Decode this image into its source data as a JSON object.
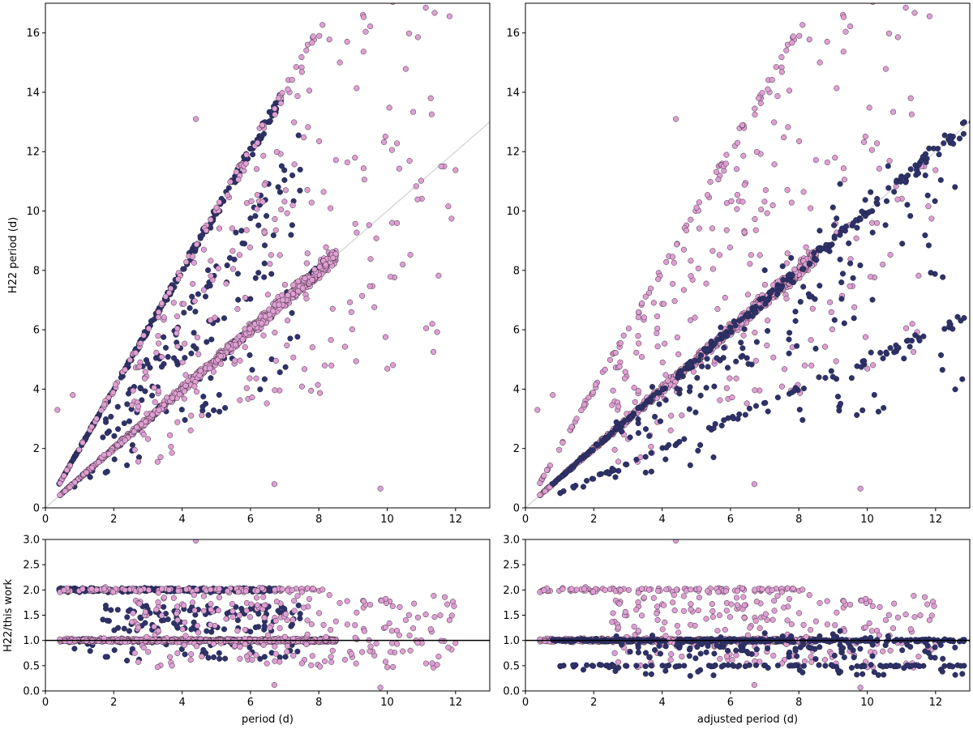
{
  "colors": {
    "dark_series": "#2e3268",
    "pink_series": "#df9fd3",
    "pink_edge": "#3b2a3a",
    "identity_line": "#d9d9d9",
    "ratio_line": "#000000"
  },
  "chart_data": [
    {
      "id": "top-left",
      "type": "scatter",
      "xlabel": "",
      "ylabel": "H22 period (d)",
      "xlim": [
        0,
        13
      ],
      "ylim": [
        0,
        17
      ],
      "xticks": [
        0,
        2,
        4,
        6,
        8,
        10,
        12
      ],
      "yticks": [
        0,
        2,
        4,
        6,
        8,
        10,
        12,
        14,
        16
      ],
      "reference_line": {
        "type": "y = x"
      },
      "series": [
        {
          "name": "dark",
          "description": "Branch along y = 2x from x 0.4 to 6.9; scattered points at y = 1.3-1.6x",
          "trends": [
            {
              "slope": 2.0,
              "x_range": [
                0.4,
                6.9
              ]
            },
            {
              "slope": 1.0,
              "x_range": [
                0.4,
                8.0
              ]
            },
            {
              "slope": 1.5,
              "x_range": [
                1.5,
                7.0
              ],
              "scattered": true
            }
          ]
        },
        {
          "name": "pink",
          "description": "Dense branch along y = x from x 0.4 to 8.5; scattered points up to x 12",
          "trends": [
            {
              "slope": 1.0,
              "x_range": [
                0.4,
                8.5
              ]
            },
            {
              "slope": 2.0,
              "x_range": [
                0.4,
                8.2
              ]
            },
            {
              "slope": 0.6,
              "x_range": [
                6.0,
                12.0
              ],
              "scattered": true
            }
          ]
        }
      ]
    },
    {
      "id": "top-right",
      "type": "scatter",
      "xlabel": "",
      "ylabel": "",
      "xlim": [
        0,
        13
      ],
      "ylim": [
        0,
        17
      ],
      "xticks": [
        0,
        2,
        4,
        6,
        8,
        10,
        12
      ],
      "yticks": [
        0,
        2,
        4,
        6,
        8,
        10,
        12,
        14,
        16
      ],
      "reference_line": {
        "type": "y = x"
      },
      "series": [
        {
          "name": "dark",
          "description": "After period adjustment: branch along y = x to x 13, branch along y = 0.5x",
          "trends": [
            {
              "slope": 1.0,
              "x_range": [
                0.4,
                13.0
              ]
            },
            {
              "slope": 0.5,
              "x_range": [
                1.0,
                13.0
              ]
            }
          ]
        },
        {
          "name": "pink",
          "description": "Same as left panel",
          "trends": [
            {
              "slope": 1.0,
              "x_range": [
                0.4,
                8.5
              ]
            },
            {
              "slope": 2.0,
              "x_range": [
                0.4,
                8.2
              ]
            }
          ]
        }
      ]
    },
    {
      "id": "bottom-left",
      "type": "scatter",
      "xlabel": "period (d)",
      "ylabel": "H22/this work",
      "xlim": [
        0,
        13
      ],
      "ylim": [
        0.0,
        3.0
      ],
      "xticks": [
        0,
        2,
        4,
        6,
        8,
        10,
        12
      ],
      "yticks": [
        0.0,
        0.5,
        1.0,
        1.5,
        2.0,
        2.5,
        3.0
      ],
      "reference_line": {
        "type": "y = 1"
      },
      "series": [
        {
          "name": "dark",
          "description": "Ratios near 2.0 for x 0.4-7; near 1.0 up to x 8; scattered 1.2-1.6"
        },
        {
          "name": "pink",
          "description": "Ratios near 1.0 for x 0.4-12; near 2.0 for x 0.4-8.2"
        }
      ]
    },
    {
      "id": "bottom-right",
      "type": "scatter",
      "xlabel": "adjusted period (d)",
      "ylabel": "",
      "xlim": [
        0,
        13
      ],
      "ylim": [
        0.0,
        3.0
      ],
      "xticks": [
        0,
        2,
        4,
        6,
        8,
        10,
        12
      ],
      "yticks": [
        0.0,
        0.5,
        1.0,
        1.5,
        2.0,
        2.5,
        3.0
      ],
      "reference_line": {
        "type": "y = 1"
      },
      "series": [
        {
          "name": "dark",
          "description": "Ratios near 1.0 and 0.5 spanning x 1-13"
        },
        {
          "name": "pink",
          "description": "Ratios near 1.0 and 2.0 as in left panel"
        }
      ]
    }
  ]
}
